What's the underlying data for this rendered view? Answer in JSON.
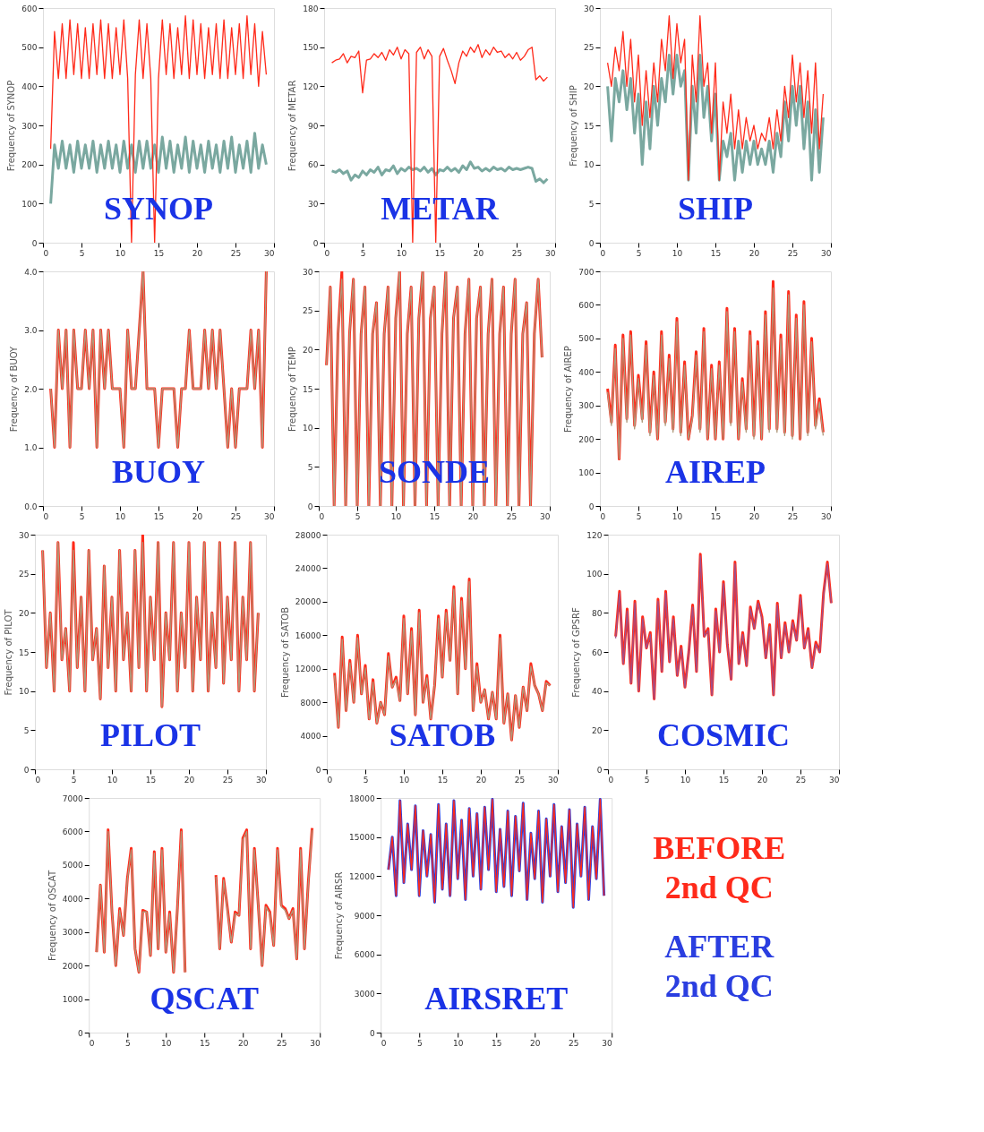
{
  "chart_data": [
    {
      "type": "line",
      "ylabel": "Frequency of  SYNOP",
      "annotations": [
        "SYNOP"
      ],
      "xlim": [
        0,
        30
      ],
      "xticks": [
        0,
        5,
        10,
        15,
        20,
        25,
        30
      ],
      "ylim": [
        0,
        600
      ],
      "yticks": [
        0,
        100,
        200,
        300,
        400,
        500,
        600
      ],
      "x": [
        1,
        1.5,
        2,
        2.5,
        3,
        3.5,
        4,
        4.5,
        5,
        5.5,
        6,
        6.5,
        7,
        7.5,
        8,
        8.5,
        9,
        9.5,
        10,
        10.5,
        11,
        11.5,
        12,
        12.5,
        13,
        13.5,
        14,
        14.5,
        15,
        15.5,
        16,
        16.5,
        17,
        17.5,
        18,
        18.5,
        19,
        19.5,
        20,
        20.5,
        21,
        21.5,
        22,
        22.5,
        23,
        23.5,
        24,
        24.5,
        25,
        25.5,
        26,
        26.5,
        27,
        27.5,
        28,
        28.5,
        29
      ],
      "series": [
        {
          "color": "#7aa8a0",
          "values": [
            100,
            250,
            190,
            260,
            190,
            250,
            180,
            260,
            190,
            250,
            190,
            260,
            180,
            250,
            190,
            260,
            190,
            250,
            180,
            260,
            190,
            250,
            180,
            260,
            190,
            260,
            190,
            250,
            180,
            270,
            190,
            260,
            180,
            250,
            190,
            270,
            180,
            260,
            190,
            250,
            180,
            260,
            190,
            250,
            180,
            260,
            190,
            270,
            180,
            250,
            190,
            260,
            180,
            280,
            190,
            250,
            200
          ]
        },
        {
          "color": "#ff2a1a",
          "values": [
            240,
            540,
            420,
            560,
            420,
            570,
            430,
            560,
            420,
            550,
            420,
            560,
            430,
            570,
            420,
            560,
            420,
            550,
            430,
            570,
            420,
            0,
            430,
            570,
            420,
            560,
            420,
            0,
            420,
            570,
            430,
            560,
            420,
            550,
            430,
            580,
            420,
            570,
            430,
            560,
            420,
            550,
            430,
            560,
            420,
            570,
            420,
            550,
            430,
            560,
            420,
            580,
            430,
            560,
            400,
            540,
            430
          ]
        }
      ]
    },
    {
      "type": "line",
      "ylabel": "Frequency of  METAR",
      "annotations": [
        "METAR"
      ],
      "xlim": [
        0,
        30
      ],
      "xticks": [
        0,
        5,
        10,
        15,
        20,
        25,
        30
      ],
      "ylim": [
        0,
        180
      ],
      "yticks": [
        0,
        30,
        60,
        90,
        120,
        150,
        180
      ],
      "x": [
        1,
        1.5,
        2,
        2.5,
        3,
        3.5,
        4,
        4.5,
        5,
        5.5,
        6,
        6.5,
        7,
        7.5,
        8,
        8.5,
        9,
        9.5,
        10,
        10.5,
        11,
        11.5,
        12,
        12.5,
        13,
        13.5,
        14,
        14.5,
        15,
        15.5,
        16,
        16.5,
        17,
        17.5,
        18,
        18.5,
        19,
        19.5,
        20,
        20.5,
        21,
        21.5,
        22,
        22.5,
        23,
        23.5,
        24,
        24.5,
        25,
        25.5,
        26,
        26.5,
        27,
        27.5,
        28,
        28.5,
        29
      ],
      "series": [
        {
          "color": "#7aa8a0",
          "values": [
            55,
            54,
            56,
            53,
            55,
            48,
            52,
            50,
            55,
            52,
            56,
            54,
            58,
            52,
            56,
            55,
            59,
            53,
            57,
            55,
            58,
            56,
            57,
            55,
            58,
            54,
            57,
            52,
            56,
            55,
            58,
            55,
            57,
            54,
            59,
            56,
            62,
            57,
            58,
            55,
            57,
            55,
            58,
            56,
            57,
            55,
            58,
            56,
            57,
            56,
            57,
            58,
            57,
            47,
            49,
            46,
            49
          ]
        },
        {
          "color": "#ff2a1a",
          "values": [
            138,
            140,
            141,
            145,
            138,
            143,
            142,
            147,
            115,
            140,
            141,
            145,
            142,
            146,
            140,
            148,
            144,
            150,
            141,
            148,
            145,
            0,
            146,
            150,
            141,
            148,
            143,
            0,
            143,
            149,
            140,
            132,
            122,
            138,
            147,
            143,
            150,
            146,
            152,
            142,
            148,
            144,
            150,
            146,
            147,
            142,
            145,
            141,
            146,
            140,
            143,
            148,
            150,
            125,
            128,
            124,
            127
          ]
        }
      ]
    },
    {
      "type": "line",
      "ylabel": "Frequency of  SHIP",
      "annotations": [
        "SHIP"
      ],
      "xlim": [
        0,
        30
      ],
      "xticks": [
        0,
        5,
        10,
        15,
        20,
        25,
        30
      ],
      "ylim": [
        0,
        30
      ],
      "yticks": [
        0,
        5,
        10,
        15,
        20,
        25,
        30
      ],
      "x": [
        1,
        1.5,
        2,
        2.5,
        3,
        3.5,
        4,
        4.5,
        5,
        5.5,
        6,
        6.5,
        7,
        7.5,
        8,
        8.5,
        9,
        9.5,
        10,
        10.5,
        11,
        11.5,
        12,
        12.5,
        13,
        13.5,
        14,
        14.5,
        15,
        15.5,
        16,
        16.5,
        17,
        17.5,
        18,
        18.5,
        19,
        19.5,
        20,
        20.5,
        21,
        21.5,
        22,
        22.5,
        23,
        23.5,
        24,
        24.5,
        25,
        25.5,
        26,
        26.5,
        27,
        27.5,
        28,
        28.5,
        29
      ],
      "series": [
        {
          "color": "#7aa8a0",
          "values": [
            20,
            13,
            21,
            18,
            22,
            17,
            21,
            14,
            19,
            10,
            18,
            12,
            20,
            15,
            21,
            18,
            24,
            19,
            24,
            20,
            22,
            8,
            20,
            14,
            24,
            16,
            20,
            13,
            19,
            8,
            13,
            11,
            14,
            8,
            13,
            9,
            13,
            10,
            13,
            10,
            12,
            10,
            13,
            9,
            14,
            11,
            18,
            13,
            20,
            15,
            20,
            12,
            18,
            8,
            17,
            9,
            16
          ]
        },
        {
          "color": "#ff2a1a",
          "values": [
            23,
            20,
            25,
            22,
            27,
            20,
            26,
            18,
            24,
            15,
            22,
            16,
            23,
            18,
            26,
            22,
            29,
            21,
            28,
            23,
            26,
            8,
            24,
            18,
            29,
            20,
            23,
            14,
            23,
            8,
            18,
            14,
            19,
            12,
            17,
            12,
            16,
            13,
            15,
            12,
            14,
            13,
            16,
            12,
            17,
            13,
            20,
            16,
            24,
            18,
            23,
            16,
            22,
            14,
            23,
            12,
            19
          ]
        }
      ]
    },
    {
      "type": "line",
      "ylabel": "Frequency of  BUOY",
      "annotations": [
        "BUOY"
      ],
      "xlim": [
        0,
        30
      ],
      "xticks": [
        0,
        5,
        10,
        15,
        20,
        25,
        30
      ],
      "ylim": [
        0,
        4
      ],
      "yticks": [
        {
          "value": 0,
          "label": "0.0"
        },
        {
          "value": 1,
          "label": "1.0"
        },
        {
          "value": 2,
          "label": "2.0"
        },
        {
          "value": 3,
          "label": "3.0"
        },
        {
          "value": 4,
          "label": "4.0"
        }
      ],
      "x": [
        1,
        1.5,
        2,
        2.5,
        3,
        3.5,
        4,
        4.5,
        5,
        5.5,
        6,
        6.5,
        7,
        7.5,
        8,
        8.5,
        9,
        9.5,
        10,
        10.5,
        11,
        11.5,
        12,
        12.5,
        13,
        13.5,
        14,
        14.5,
        15,
        15.5,
        16,
        16.5,
        17,
        17.5,
        18,
        18.5,
        19,
        19.5,
        20,
        20.5,
        21,
        21.5,
        22,
        22.5,
        23,
        23.5,
        24,
        24.5,
        25,
        25.5,
        26,
        26.5,
        27,
        27.5,
        28,
        28.5,
        29
      ],
      "series": [
        {
          "color": "#ff2a1a",
          "values": [
            2,
            1,
            3,
            2,
            3,
            1,
            3,
            2,
            2,
            3,
            2,
            3,
            1,
            3,
            2,
            3,
            2,
            2,
            2,
            1,
            3,
            2,
            2,
            3,
            4,
            2,
            2,
            2,
            1,
            2,
            2,
            2,
            2,
            1,
            2,
            2,
            3,
            2,
            2,
            2,
            3,
            2,
            3,
            2,
            3,
            2,
            1,
            2,
            1,
            2,
            2,
            2,
            3,
            2,
            3,
            1,
            4
          ]
        },
        {
          "color": "#b09a7c",
          "values": [
            2,
            1,
            3,
            2,
            3,
            1,
            3,
            2,
            2,
            3,
            2,
            3,
            1,
            3,
            2,
            3,
            2,
            2,
            2,
            1,
            3,
            2,
            2,
            3,
            4,
            2,
            2,
            2,
            1,
            2,
            2,
            2,
            2,
            1,
            2,
            2,
            3,
            2,
            2,
            2,
            3,
            2,
            3,
            2,
            3,
            2,
            1,
            2,
            1,
            2,
            2,
            2,
            3,
            2,
            3,
            1,
            4
          ]
        }
      ]
    },
    {
      "type": "line",
      "ylabel": "Frequency of  TEMP",
      "annotations": [
        "SONDE"
      ],
      "xlim": [
        0,
        30
      ],
      "xticks": [
        0,
        5,
        10,
        15,
        20,
        25,
        30
      ],
      "ylim": [
        0,
        30
      ],
      "yticks": [
        0,
        5,
        10,
        15,
        20,
        25,
        30
      ],
      "x": [
        1,
        1.5,
        2,
        2.5,
        3,
        3.5,
        4,
        4.5,
        5,
        5.5,
        6,
        6.5,
        7,
        7.5,
        8,
        8.5,
        9,
        9.5,
        10,
        10.5,
        11,
        11.5,
        12,
        12.5,
        13,
        13.5,
        14,
        14.5,
        15,
        15.5,
        16,
        16.5,
        17,
        17.5,
        18,
        18.5,
        19,
        19.5,
        20,
        20.5,
        21,
        21.5,
        22,
        22.5,
        23,
        23.5,
        24,
        24.5,
        25,
        25.5,
        26,
        26.5,
        27,
        27.5,
        28,
        28.5,
        29
      ],
      "series": [
        {
          "color": "#ff2a1a",
          "values": [
            18,
            28,
            0,
            22,
            30,
            0,
            22,
            29,
            0,
            22,
            28,
            0,
            22,
            26,
            0,
            22,
            28,
            0,
            24,
            30,
            0,
            22,
            28,
            0,
            24,
            30,
            0,
            24,
            28,
            0,
            22,
            30,
            0,
            24,
            28,
            0,
            22,
            29,
            0,
            24,
            28,
            0,
            22,
            29,
            0,
            22,
            28,
            0,
            22,
            29,
            0,
            22,
            26,
            0,
            22,
            29,
            19
          ]
        },
        {
          "color": "#b09a7c",
          "values": [
            18,
            28,
            0,
            22,
            29,
            0,
            22,
            29,
            0,
            22,
            28,
            0,
            22,
            26,
            0,
            22,
            28,
            0,
            24,
            30,
            0,
            22,
            28,
            0,
            24,
            30,
            0,
            24,
            28,
            0,
            22,
            30,
            0,
            24,
            28,
            0,
            22,
            29,
            0,
            24,
            28,
            0,
            22,
            29,
            0,
            22,
            28,
            0,
            22,
            29,
            0,
            22,
            26,
            0,
            22,
            29,
            19
          ]
        }
      ]
    },
    {
      "type": "line",
      "ylabel": "Frequency of  AIREP",
      "annotations": [
        "AIREP"
      ],
      "xlim": [
        0,
        30
      ],
      "xticks": [
        0,
        5,
        10,
        15,
        20,
        25,
        30
      ],
      "ylim": [
        0,
        700
      ],
      "yticks": [
        0,
        100,
        200,
        300,
        400,
        500,
        600,
        700
      ],
      "x": [
        1,
        1.5,
        2,
        2.5,
        3,
        3.5,
        4,
        4.5,
        5,
        5.5,
        6,
        6.5,
        7,
        7.5,
        8,
        8.5,
        9,
        9.5,
        10,
        10.5,
        11,
        11.5,
        12,
        12.5,
        13,
        13.5,
        14,
        14.5,
        15,
        15.5,
        16,
        16.5,
        17,
        17.5,
        18,
        18.5,
        19,
        19.5,
        20,
        20.5,
        21,
        21.5,
        22,
        22.5,
        23,
        23.5,
        24,
        24.5,
        25,
        25.5,
        26,
        26.5,
        27,
        27.5,
        28,
        28.5,
        29
      ],
      "series": [
        {
          "color": "#ff2a1a",
          "values": [
            350,
            250,
            480,
            140,
            510,
            260,
            520,
            240,
            390,
            260,
            490,
            220,
            400,
            200,
            520,
            250,
            450,
            230,
            560,
            220,
            430,
            200,
            270,
            460,
            230,
            530,
            200,
            420,
            200,
            430,
            200,
            590,
            250,
            530,
            200,
            380,
            230,
            520,
            210,
            490,
            200,
            580,
            230,
            670,
            230,
            510,
            220,
            640,
            210,
            570,
            200,
            610,
            220,
            500,
            240,
            320,
            220
          ]
        },
        {
          "color": "#b09a7c",
          "values": [
            340,
            240,
            470,
            140,
            500,
            250,
            510,
            230,
            380,
            250,
            480,
            210,
            390,
            200,
            510,
            240,
            440,
            220,
            550,
            210,
            420,
            200,
            260,
            450,
            220,
            520,
            200,
            410,
            200,
            420,
            200,
            580,
            240,
            520,
            200,
            370,
            220,
            510,
            200,
            480,
            200,
            570,
            220,
            650,
            220,
            500,
            210,
            630,
            200,
            560,
            200,
            600,
            210,
            490,
            230,
            310,
            210
          ]
        }
      ]
    },
    {
      "type": "line",
      "ylabel": "Frequency of  PILOT",
      "annotations": [
        "PILOT"
      ],
      "xlim": [
        0,
        30
      ],
      "xticks": [
        0,
        5,
        10,
        15,
        20,
        25,
        30
      ],
      "ylim": [
        0,
        30
      ],
      "yticks": [
        0,
        5,
        10,
        15,
        20,
        25,
        30
      ],
      "x": [
        1,
        1.5,
        2,
        2.5,
        3,
        3.5,
        4,
        4.5,
        5,
        5.5,
        6,
        6.5,
        7,
        7.5,
        8,
        8.5,
        9,
        9.5,
        10,
        10.5,
        11,
        11.5,
        12,
        12.5,
        13,
        13.5,
        14,
        14.5,
        15,
        15.5,
        16,
        16.5,
        17,
        17.5,
        18,
        18.5,
        19,
        19.5,
        20,
        20.5,
        21,
        21.5,
        22,
        22.5,
        23,
        23.5,
        24,
        24.5,
        25,
        25.5,
        26,
        26.5,
        27,
        27.5,
        28,
        28.5,
        29
      ],
      "series": [
        {
          "color": "#ff2a1a",
          "values": [
            28,
            13,
            20,
            10,
            29,
            14,
            18,
            10,
            29,
            13,
            22,
            10,
            28,
            14,
            18,
            9,
            26,
            13,
            22,
            10,
            28,
            14,
            20,
            10,
            28,
            13,
            30,
            10,
            22,
            14,
            29,
            8,
            20,
            14,
            29,
            10,
            20,
            13,
            29,
            10,
            22,
            14,
            29,
            10,
            20,
            13,
            29,
            11,
            22,
            14,
            29,
            10,
            22,
            14,
            29,
            10,
            20
          ]
        },
        {
          "color": "#b09a7c",
          "values": [
            28,
            13,
            20,
            10,
            29,
            14,
            18,
            10,
            28,
            13,
            22,
            10,
            28,
            14,
            18,
            9,
            26,
            13,
            22,
            10,
            28,
            14,
            20,
            10,
            28,
            13,
            29,
            10,
            22,
            14,
            29,
            8,
            20,
            14,
            29,
            10,
            20,
            13,
            29,
            10,
            22,
            14,
            29,
            10,
            20,
            13,
            29,
            11,
            22,
            14,
            29,
            10,
            22,
            14,
            29,
            10,
            20
          ]
        }
      ]
    },
    {
      "type": "line",
      "ylabel": "Frequency of  SATOB",
      "annotations": [
        "SATOB"
      ],
      "xlim": [
        0,
        30
      ],
      "xticks": [
        0,
        5,
        10,
        15,
        20,
        25,
        30
      ],
      "ylim": [
        0,
        28000
      ],
      "yticks": [
        0,
        4000,
        8000,
        12000,
        16000,
        20000,
        24000,
        28000
      ],
      "x": [
        1,
        1.5,
        2,
        2.5,
        3,
        3.5,
        4,
        4.5,
        5,
        5.5,
        6,
        6.5,
        7,
        7.5,
        8,
        8.5,
        9,
        9.5,
        10,
        10.5,
        11,
        11.5,
        12,
        12.5,
        13,
        13.5,
        14,
        14.5,
        15,
        15.5,
        16,
        16.5,
        17,
        17.5,
        18,
        18.5,
        19,
        19.5,
        20,
        20.5,
        21,
        21.5,
        22,
        22.5,
        23,
        23.5,
        24,
        24.5,
        25,
        25.5,
        26,
        26.5,
        27,
        27.5,
        28,
        28.5,
        29
      ],
      "series": [
        {
          "color": "#ff2a1a",
          "values": [
            11500,
            5000,
            15800,
            7000,
            13000,
            8000,
            16000,
            9000,
            12400,
            6000,
            10700,
            5500,
            8000,
            6500,
            13800,
            9800,
            11000,
            8200,
            18300,
            9000,
            16800,
            6500,
            19000,
            8000,
            11200,
            6000,
            10000,
            18300,
            11000,
            19000,
            13000,
            21800,
            9000,
            20400,
            12000,
            22700,
            7000,
            12600,
            8000,
            9500,
            6000,
            9200,
            6000,
            16000,
            5500,
            9000,
            3500,
            8800,
            5000,
            9800,
            7000,
            12600,
            10000,
            9000,
            7000,
            10500,
            10000
          ]
        },
        {
          "color": "#b09a7c",
          "values": [
            11200,
            5000,
            15500,
            7000,
            12700,
            8000,
            15700,
            9000,
            12100,
            6000,
            10400,
            5500,
            8000,
            6500,
            13500,
            9800,
            10700,
            8200,
            18000,
            9000,
            16500,
            6500,
            18700,
            8000,
            10900,
            6000,
            10000,
            18000,
            11000,
            18700,
            13000,
            21500,
            9000,
            20100,
            12000,
            22400,
            7000,
            12300,
            8000,
            9500,
            6000,
            9200,
            6000,
            15700,
            5500,
            9000,
            3500,
            8800,
            5000,
            9800,
            7000,
            12300,
            10000,
            9000,
            7000,
            10300,
            10000
          ]
        }
      ]
    },
    {
      "type": "line",
      "ylabel": "Frequency of  GPSRF",
      "annotations": [
        "COSMIC"
      ],
      "xlim": [
        0,
        30
      ],
      "xticks": [
        0,
        5,
        10,
        15,
        20,
        25,
        30
      ],
      "ylim": [
        0,
        120
      ],
      "yticks": [
        0,
        20,
        40,
        60,
        80,
        100,
        120
      ],
      "x": [
        1,
        1.5,
        2,
        2.5,
        3,
        3.5,
        4,
        4.5,
        5,
        5.5,
        6,
        6.5,
        7,
        7.5,
        8,
        8.5,
        9,
        9.5,
        10,
        10.5,
        11,
        11.5,
        12,
        12.5,
        13,
        13.5,
        14,
        14.5,
        15,
        15.5,
        16,
        16.5,
        17,
        17.5,
        18,
        18.5,
        19,
        19.5,
        20,
        20.5,
        21,
        21.5,
        22,
        22.5,
        23,
        23.5,
        24,
        24.5,
        25,
        25.5,
        26,
        26.5,
        27,
        27.5,
        28,
        28.5,
        29
      ],
      "series": [
        {
          "color": "#ff2a1a",
          "values": [
            68,
            91,
            54,
            82,
            44,
            86,
            40,
            78,
            62,
            70,
            36,
            87,
            50,
            91,
            55,
            78,
            48,
            63,
            42,
            60,
            84,
            50,
            110,
            68,
            72,
            38,
            82,
            60,
            96,
            64,
            46,
            106,
            54,
            70,
            53,
            83,
            72,
            86,
            78,
            57,
            74,
            38,
            85,
            57,
            75,
            60,
            76,
            66,
            89,
            62,
            72,
            52,
            65,
            60,
            90,
            106,
            85
          ]
        },
        {
          "color": "#a0508c",
          "values": [
            67,
            90,
            54,
            81,
            44,
            85,
            40,
            77,
            62,
            69,
            36,
            86,
            50,
            90,
            55,
            77,
            48,
            62,
            42,
            60,
            83,
            50,
            109,
            68,
            71,
            38,
            81,
            60,
            95,
            64,
            46,
            105,
            54,
            69,
            53,
            82,
            72,
            85,
            77,
            57,
            73,
            38,
            84,
            57,
            74,
            60,
            75,
            66,
            88,
            62,
            71,
            52,
            64,
            60,
            89,
            105,
            85
          ]
        }
      ]
    },
    {
      "type": "line",
      "ylabel": "Frequency of  QSCAT",
      "annotations": [
        "QSCAT"
      ],
      "xlim": [
        0,
        30
      ],
      "xticks": [
        0,
        5,
        10,
        15,
        20,
        25,
        30
      ],
      "ylim": [
        0,
        7000
      ],
      "yticks": [
        0,
        1000,
        2000,
        3000,
        4000,
        5000,
        6000,
        7000
      ],
      "x": [
        1,
        1.5,
        2,
        2.5,
        3,
        3.5,
        4,
        4.5,
        5,
        5.5,
        6,
        6.5,
        7,
        7.5,
        8,
        8.5,
        9,
        9.5,
        10,
        10.5,
        11,
        11.5,
        12,
        12.5,
        13,
        13.5,
        14,
        14.5,
        15,
        15.5,
        16,
        16.5,
        17,
        17.5,
        18,
        18.5,
        19,
        19.5,
        20,
        20.5,
        21,
        21.5,
        22,
        22.5,
        23,
        23.5,
        24,
        24.5,
        25,
        25.5,
        26,
        26.5,
        27,
        27.5,
        28,
        28.5,
        29
      ],
      "series": [
        {
          "color": "#ff2a1a",
          "values": [
            2400,
            4400,
            2400,
            6050,
            3600,
            2000,
            3700,
            2900,
            4600,
            5500,
            2500,
            1800,
            3650,
            3600,
            2300,
            5400,
            2500,
            5500,
            2400,
            3600,
            1800,
            3700,
            6050,
            1800,
            null,
            null,
            null,
            null,
            null,
            null,
            null,
            4700,
            2500,
            4600,
            3700,
            2700,
            3600,
            3500,
            5800,
            6050,
            2500,
            5500,
            3800,
            2000,
            3800,
            3600,
            2600,
            5500,
            3800,
            3700,
            3400,
            3700,
            2200,
            5500,
            2500,
            4500,
            6100
          ]
        },
        {
          "color": "#b09a7c",
          "values": [
            2400,
            4400,
            2400,
            6000,
            3600,
            2000,
            3650,
            2900,
            4550,
            5450,
            2500,
            1800,
            3600,
            3600,
            2300,
            5350,
            2500,
            5450,
            2400,
            3550,
            1800,
            3650,
            6000,
            1800,
            null,
            null,
            null,
            null,
            null,
            null,
            null,
            4650,
            2500,
            4550,
            3650,
            2700,
            3550,
            3500,
            5750,
            6000,
            2500,
            5450,
            3750,
            2000,
            3750,
            3550,
            2600,
            5450,
            3750,
            3650,
            3400,
            3650,
            2200,
            5450,
            2500,
            4450,
            6050
          ]
        }
      ]
    },
    {
      "type": "line",
      "ylabel": "Frequency of  AIRSR",
      "annotations": [
        "AIRSRET"
      ],
      "legend": "right",
      "xlim": [
        0,
        30
      ],
      "xticks": [
        0,
        5,
        10,
        15,
        20,
        25,
        30
      ],
      "ylim": [
        0,
        18000
      ],
      "yticks": [
        0,
        3000,
        6000,
        9000,
        12000,
        15000,
        18000
      ],
      "x": [
        1,
        1.5,
        2,
        2.5,
        3,
        3.5,
        4,
        4.5,
        5,
        5.5,
        6,
        6.5,
        7,
        7.5,
        8,
        8.5,
        9,
        9.5,
        10,
        10.5,
        11,
        11.5,
        12,
        12.5,
        13,
        13.5,
        14,
        14.5,
        15,
        15.5,
        16,
        16.5,
        17,
        17.5,
        18,
        18.5,
        19,
        19.5,
        20,
        20.5,
        21,
        21.5,
        22,
        22.5,
        23,
        23.5,
        24,
        24.5,
        25,
        25.5,
        26,
        26.5,
        27,
        27.5,
        28,
        28.5,
        29
      ],
      "series": [
        {
          "name": "AFTER 2nd QC",
          "color": "#2a3ee0",
          "values": [
            12500,
            15000,
            10500,
            17800,
            11500,
            16000,
            12500,
            17400,
            10500,
            15500,
            12000,
            15200,
            10000,
            17500,
            11000,
            16000,
            10500,
            17800,
            11800,
            16300,
            10200,
            17200,
            12000,
            16800,
            11000,
            17300,
            12500,
            17900,
            10800,
            15600,
            11200,
            17000,
            10500,
            16600,
            12400,
            17600,
            10200,
            15300,
            11800,
            17000,
            10000,
            16400,
            12000,
            17500,
            10800,
            15800,
            11500,
            17100,
            9600,
            16000,
            12000,
            17300,
            10200,
            15800,
            11800,
            17900,
            10500
          ]
        },
        {
          "name": "BEFORE 2nd QC",
          "color": "#ff2a1a",
          "values": [
            12500,
            15000,
            10500,
            17800,
            11500,
            16000,
            12500,
            17400,
            10500,
            15500,
            12000,
            15200,
            10000,
            17500,
            11000,
            16000,
            10500,
            17800,
            11800,
            16300,
            10200,
            17200,
            12000,
            16800,
            11000,
            17300,
            12500,
            17900,
            10800,
            15600,
            11200,
            17000,
            10500,
            16600,
            12400,
            17600,
            10200,
            15300,
            11800,
            17000,
            10000,
            16400,
            12000,
            17500,
            10800,
            15800,
            11500,
            17100,
            9600,
            16000,
            12000,
            17300,
            10200,
            15800,
            11800,
            17900,
            10500
          ]
        }
      ]
    }
  ]
}
